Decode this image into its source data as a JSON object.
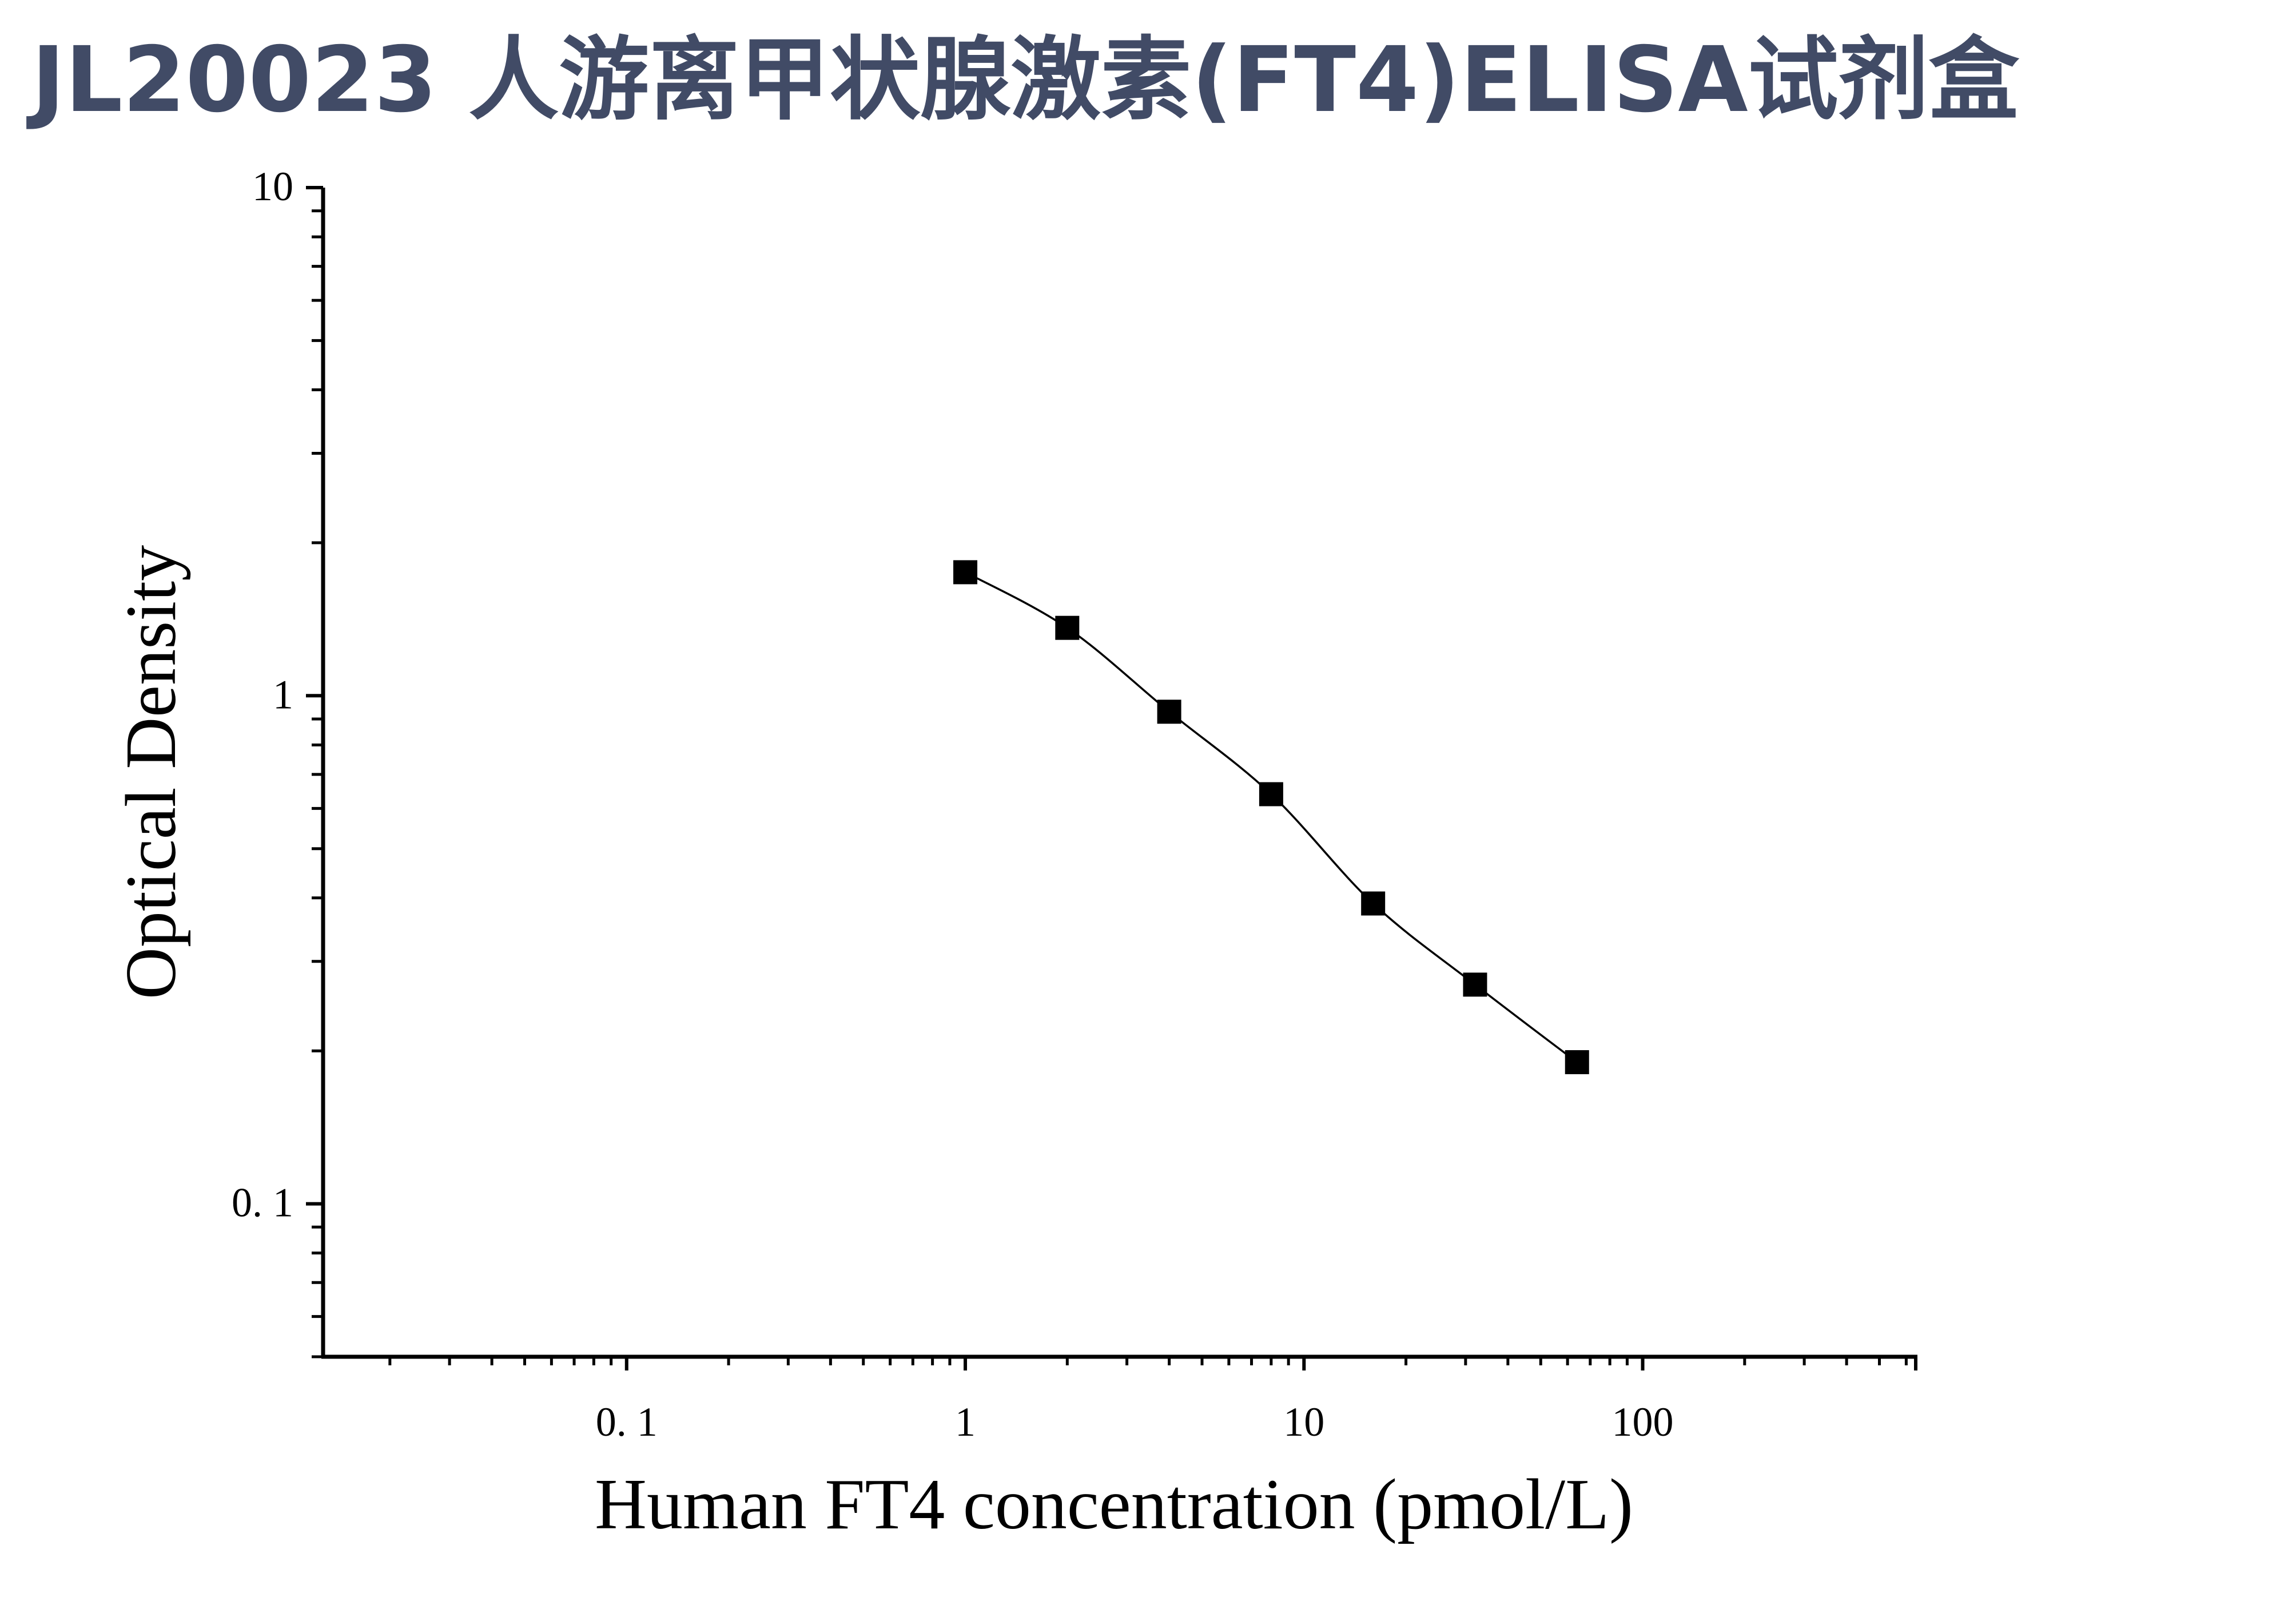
{
  "page": {
    "title": "JL20023 人游离甲状腺激素(FT4)ELISA试剂盒"
  },
  "chart_data": {
    "type": "scatter",
    "title": "",
    "xlabel": "Human FT4 concentration (pmol/L)",
    "ylabel": "Optical Density",
    "x_scale": "log",
    "y_scale": "log",
    "xlim": [
      0.0127,
      640
    ],
    "ylim": [
      0.05,
      10
    ],
    "x_ticks": [
      {
        "value": 0.1,
        "label": "0. 1"
      },
      {
        "value": 1,
        "label": "1"
      },
      {
        "value": 10,
        "label": "10"
      },
      {
        "value": 100,
        "label": "100"
      }
    ],
    "y_ticks": [
      {
        "value": 0.1,
        "label": "0. 1"
      },
      {
        "value": 1,
        "label": "1"
      },
      {
        "value": 10,
        "label": "10"
      }
    ],
    "grid": false,
    "legend": "none",
    "series": [
      {
        "marker": "square",
        "color": "#000000",
        "fit_line": true,
        "x": [
          1,
          2,
          4,
          8,
          16,
          32,
          64
        ],
        "y": [
          1.75,
          1.36,
          0.93,
          0.64,
          0.39,
          0.27,
          0.19
        ]
      }
    ]
  }
}
